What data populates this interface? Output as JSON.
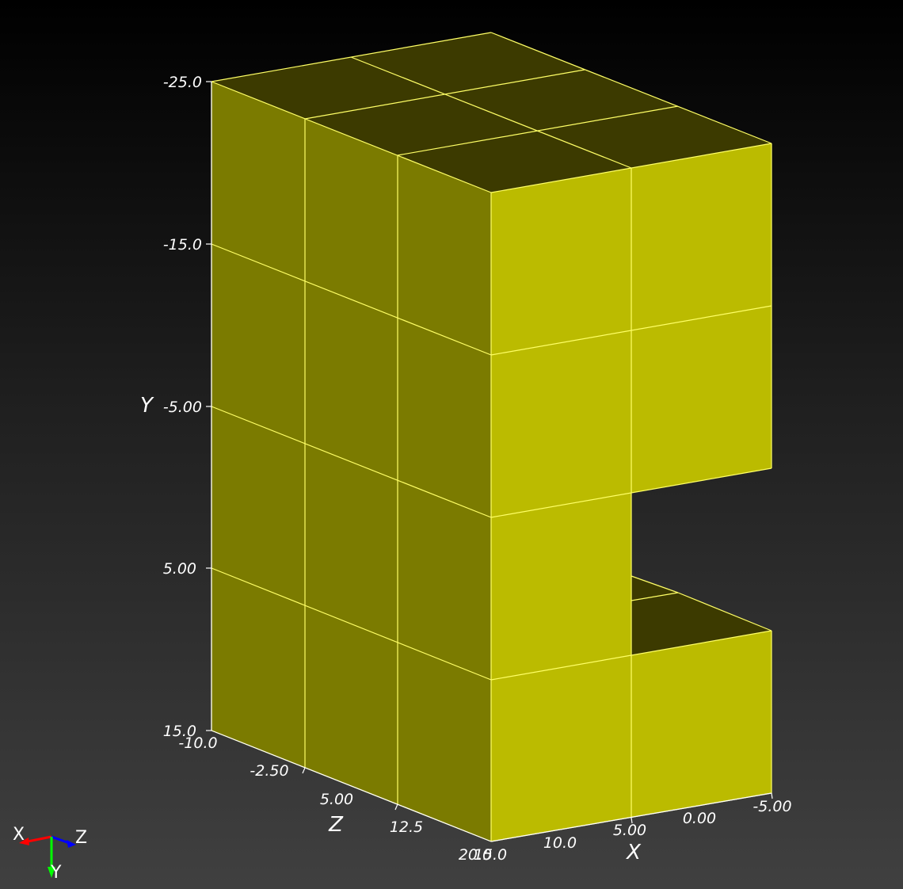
{
  "viewer": {
    "background_top": "#000000",
    "background_bottom": "#404040"
  },
  "model": {
    "colors": {
      "front": "#bbbb00",
      "side": "#7b7b00",
      "top": "#3c3a00",
      "edges": "#ffff66"
    }
  },
  "axes": {
    "y": {
      "title": "Y",
      "ticks": [
        "-25.0",
        "-15.0",
        "-5.00",
        "5.00",
        "15.0"
      ]
    },
    "z": {
      "title": "Z",
      "ticks": [
        "-10.0",
        "-2.50",
        "5.00",
        "12.5",
        "20.0"
      ]
    },
    "x": {
      "title": "X",
      "ticks": [
        "15.0",
        "10.0",
        "5.00",
        "0.00",
        "-5.00"
      ]
    }
  },
  "orientation_triad": {
    "x_label": "X",
    "y_label": "Y",
    "z_label": "Z",
    "x_color": "#ff0000",
    "y_color": "#00ff00",
    "z_color": "#0000ff"
  }
}
